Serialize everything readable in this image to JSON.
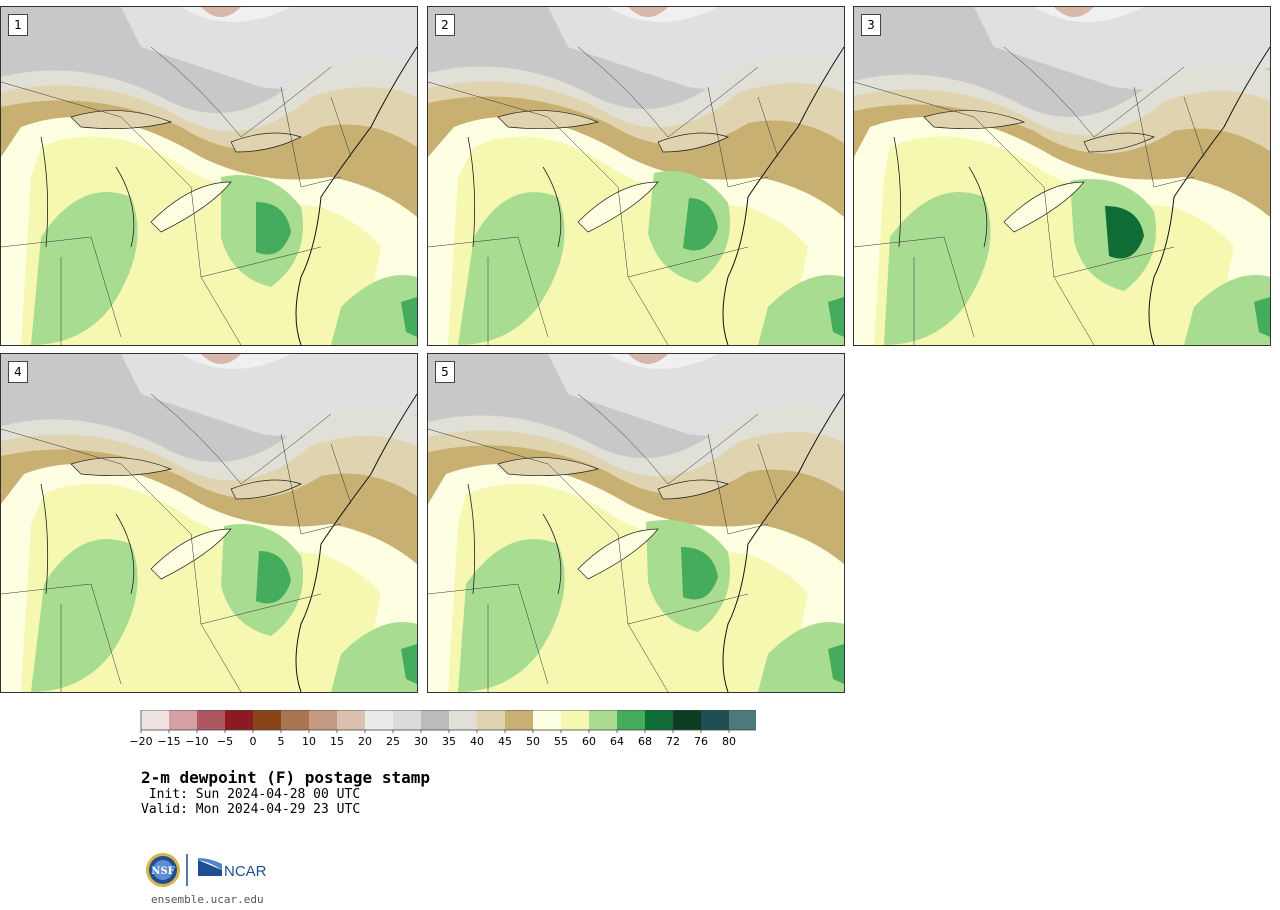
{
  "panels": [
    {
      "label": "1"
    },
    {
      "label": "2"
    },
    {
      "label": "3"
    },
    {
      "label": "4"
    },
    {
      "label": "5"
    }
  ],
  "colorbar": {
    "colors": [
      "#f0e3e3",
      "#d4a0a4",
      "#ad5860",
      "#8b1a22",
      "#8a4516",
      "#ac7552",
      "#c49a84",
      "#dcc0b0",
      "#ebebeb",
      "#dcdcdc",
      "#bcbcbc",
      "#e0e0d6",
      "#e0d4b0",
      "#c8b072",
      "#fefee2",
      "#f6f8b2",
      "#a8dc90",
      "#44ac5c",
      "#0e6c34",
      "#0c3c22",
      "#1e4e52",
      "#4a7a7c"
    ],
    "tick_labels": [
      "−20",
      "−15",
      "−10",
      "−5",
      "0",
      "5",
      "10",
      "15",
      "20",
      "25",
      "30",
      "35",
      "40",
      "45",
      "50",
      "55",
      "60",
      "64",
      "68",
      "72",
      "76",
      "80"
    ]
  },
  "title": "2-m dewpoint (F) postage stamp",
  "init": " Init: Sun 2024-04-28 00 UTC",
  "valid": "Valid: Mon 2024-04-29 23 UTC",
  "logo": {
    "nsf": "NSF",
    "ncar": "NCAR"
  },
  "url": "ensemble.ucar.edu"
}
